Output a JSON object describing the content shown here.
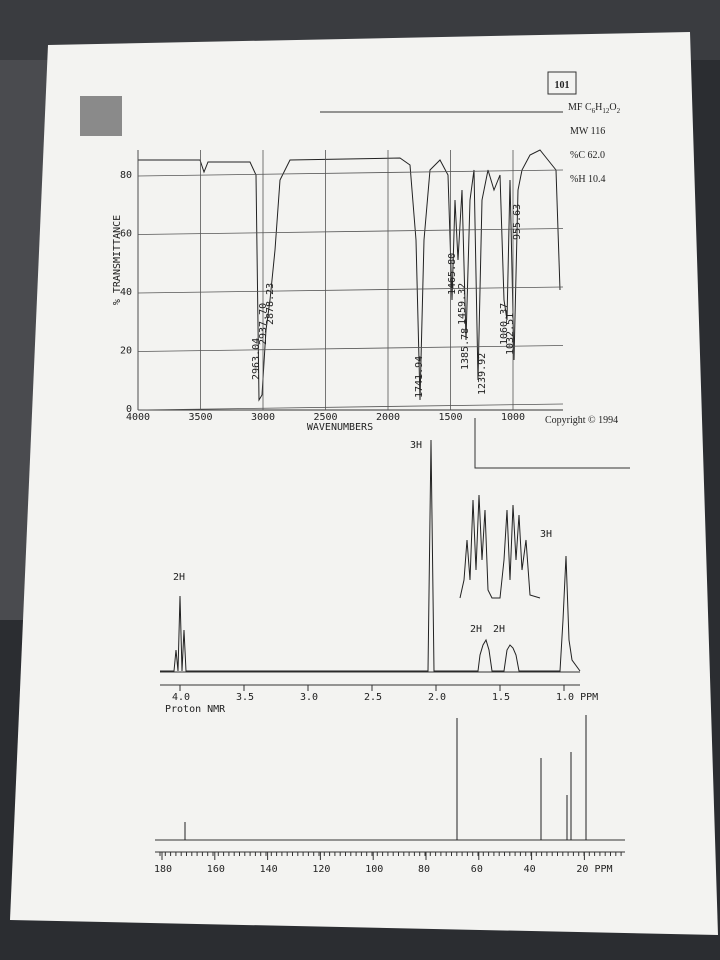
{
  "header": {
    "id": "101",
    "formula": [
      "MF C",
      "6",
      "H",
      "12",
      "O",
      "2"
    ],
    "mw": "MW 116",
    "carbon": "%C 62.0",
    "hydrogen": "%H 10.4",
    "copyright": "Copyright © 1994"
  },
  "ir": {
    "y_label": "% TRANSMITTANCE",
    "x_label": "WAVENUMBERS",
    "xticks": [
      "4000",
      "3500",
      "3000",
      "2500",
      "2000",
      "1500",
      "1000"
    ],
    "yticks": [
      "80",
      "60",
      "40",
      "20",
      "0"
    ],
    "peaks": [
      "2963.04",
      "2937.70",
      "2878.23",
      "1741.94",
      "1465.80",
      "1459.32",
      "1385.78",
      "1239.92",
      "1060.37",
      "1032.51",
      "955.63"
    ]
  },
  "proton_nmr": {
    "title": "Proton NMR",
    "xticks": [
      "4.0",
      "3.5",
      "3.0",
      "2.5",
      "2.0",
      "1.5",
      "1.0 PPM"
    ],
    "integrals": [
      "2H",
      "3H",
      "2H",
      "2H",
      "3H"
    ]
  },
  "carbon_nmr": {
    "xticks": [
      "180",
      "160",
      "140",
      "120",
      "100",
      "80",
      "60",
      "40",
      "20 PPM"
    ]
  }
}
